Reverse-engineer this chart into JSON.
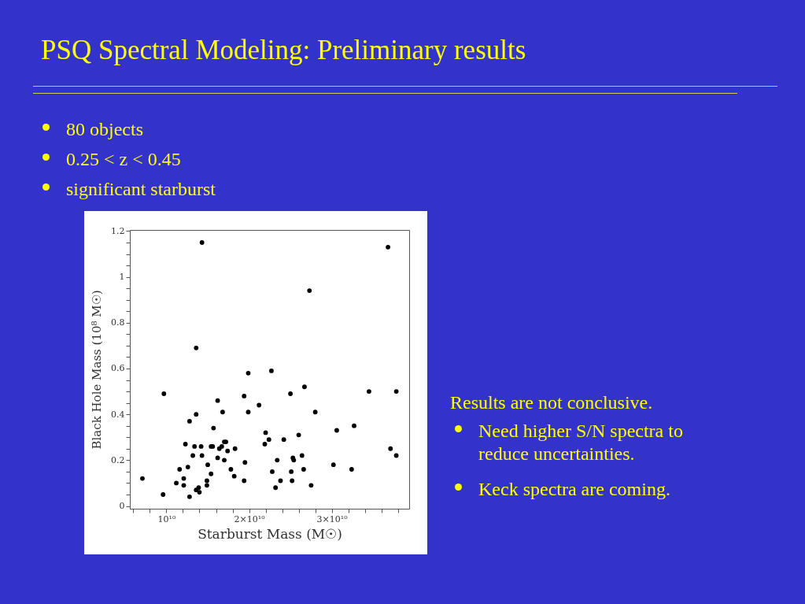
{
  "chart_data": {
    "type": "scatter",
    "title": "PSQ Spectral Modeling: Preliminary results",
    "annotations": [
      "80 objects",
      "0.25 < z < 0.45",
      "significant starburst",
      "Results are not conclusive.",
      "Need higher S/N spectra to reduce uncertainties.",
      "Keck spectra are coming."
    ],
    "xlabel": "Starburst Mass (M☉)",
    "ylabel": "Black Hole Mass (10⁸ M☉)",
    "xlim": [
      5580000000.0,
      39360000000.0
    ],
    "ylim": [
      -0.012,
      1.205
    ],
    "xticks": [
      {
        "value": 6000000000.0,
        "label": null
      },
      {
        "value": 8000000000.0,
        "label": null
      },
      {
        "value": 10000000000.0,
        "label": "10¹⁰"
      },
      {
        "value": 12000000000.0,
        "label": null
      },
      {
        "value": 14000000000.0,
        "label": null
      },
      {
        "value": 16000000000.0,
        "label": null
      },
      {
        "value": 18000000000.0,
        "label": null
      },
      {
        "value": 20000000000.0,
        "label": "2×10¹⁰"
      },
      {
        "value": 22000000000.0,
        "label": null
      },
      {
        "value": 24000000000.0,
        "label": null
      },
      {
        "value": 26000000000.0,
        "label": null
      },
      {
        "value": 28000000000.0,
        "label": null
      },
      {
        "value": 30000000000.0,
        "label": "3×10¹⁰"
      },
      {
        "value": 32000000000.0,
        "label": null
      },
      {
        "value": 34000000000.0,
        "label": null
      },
      {
        "value": 36000000000.0,
        "label": null
      },
      {
        "value": 38000000000.0,
        "label": null
      }
    ],
    "yticks": [
      0,
      {
        "value": 0.05,
        "label": null
      },
      {
        "value": 0.1,
        "label": null
      },
      {
        "value": 0.15,
        "label": null
      },
      0.2,
      {
        "value": 0.25,
        "label": null
      },
      {
        "value": 0.3,
        "label": null
      },
      {
        "value": 0.35,
        "label": null
      },
      0.4,
      {
        "value": 0.45,
        "label": null
      },
      {
        "value": 0.5,
        "label": null
      },
      {
        "value": 0.55,
        "label": null
      },
      0.6,
      {
        "value": 0.65,
        "label": null
      },
      {
        "value": 0.7,
        "label": null
      },
      {
        "value": 0.75,
        "label": null
      },
      0.8,
      {
        "value": 0.85,
        "label": null
      },
      {
        "value": 0.9,
        "label": null
      },
      {
        "value": 0.95,
        "label": null
      },
      1,
      {
        "value": 1.05,
        "label": null
      },
      {
        "value": 1.1,
        "label": null
      },
      {
        "value": 1.15,
        "label": null
      },
      1.2
    ],
    "marker": "circle",
    "series": [
      {
        "color": "#000000",
        "x": [
          14300000000.0,
          13600000000.0,
          19900000000.0,
          22700000000.0,
          27300000000.0,
          36800000000.0,
          7100000000.0,
          9700000000.0,
          9600000000.0,
          11200000000.0,
          11600000000.0,
          12100000000.0,
          12100000000.0,
          12300000000.0,
          12600000000.0,
          12800000000.0,
          12800000000.0,
          13200000000.0,
          13400000000.0,
          13600000000.0,
          13600000000.0,
          13900000000.0,
          14000000000.0,
          14200000000.0,
          14300000000.0,
          14900000000.0,
          14900000000.0,
          15000000000.0,
          15400000000.0,
          15600000000.0,
          15400000000.0,
          15700000000.0,
          16200000000.0,
          16200000000.0,
          16400000000.0,
          16700000000.0,
          16800000000.0,
          17000000000.0,
          17000000000.0,
          17200000000.0,
          17400000000.0,
          17800000000.0,
          18200000000.0,
          18300000000.0,
          19400000000.0,
          19500000000.0,
          19400000000.0,
          19900000000.0,
          21200000000.0,
          22000000000.0,
          22400000000.0,
          21900000000.0,
          24200000000.0,
          26000000000.0,
          25000000000.0,
          26700000000.0,
          28000000000.0,
          23400000000.0,
          25300000000.0,
          25400000000.0,
          26400000000.0,
          22800000000.0,
          25100000000.0,
          26600000000.0,
          23800000000.0,
          25200000000.0,
          23200000000.0,
          27500000000.0,
          30200000000.0,
          30600000000.0,
          32700000000.0,
          32400000000.0,
          34500000000.0,
          37800000000.0,
          37100000000.0,
          37800000000.0
        ],
        "values": [
          1.15,
          0.69,
          0.58,
          0.59,
          0.94,
          1.13,
          0.12,
          0.49,
          0.05,
          0.1,
          0.16,
          0.12,
          0.09,
          0.27,
          0.17,
          0.37,
          0.04,
          0.22,
          0.26,
          0.4,
          0.07,
          0.08,
          0.06,
          0.26,
          0.22,
          0.11,
          0.09,
          0.18,
          0.26,
          0.26,
          0.14,
          0.34,
          0.21,
          0.46,
          0.25,
          0.26,
          0.41,
          0.2,
          0.28,
          0.28,
          0.24,
          0.16,
          0.13,
          0.25,
          0.11,
          0.19,
          0.48,
          0.41,
          0.44,
          0.32,
          0.29,
          0.27,
          0.29,
          0.31,
          0.49,
          0.52,
          0.41,
          0.2,
          0.21,
          0.2,
          0.22,
          0.15,
          0.15,
          0.16,
          0.11,
          0.11,
          0.08,
          0.09,
          0.18,
          0.33,
          0.35,
          0.16,
          0.5,
          0.5,
          0.25,
          0.22
        ]
      }
    ]
  }
}
